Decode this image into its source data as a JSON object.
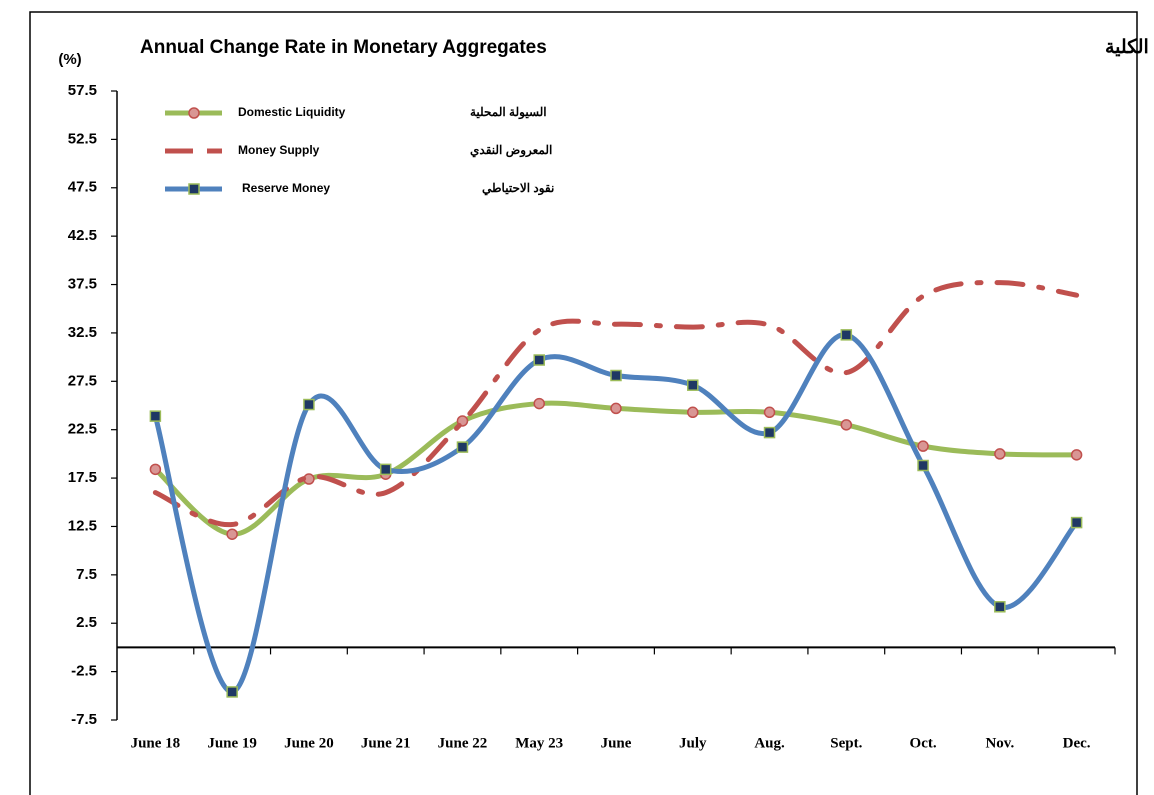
{
  "chart_data": {
    "type": "line",
    "title": "Annual Change Rate in Monetary Aggregates",
    "title_ar": "معدل التغير السنوي في المتغيرات النقدية الكلية",
    "y_label": "(%)",
    "categories": [
      "June 18",
      "June 19",
      "June 20",
      "June 21",
      "June 22",
      "May 23",
      "June",
      "July",
      "Aug.",
      "Sept.",
      "Oct.",
      "Nov.",
      "Dec."
    ],
    "ylim": [
      -7.5,
      57.5
    ],
    "yticks": [
      57.5,
      52.5,
      47.5,
      42.5,
      37.5,
      32.5,
      27.5,
      22.5,
      17.5,
      12.5,
      7.5,
      2.5,
      -2.5,
      -7.5
    ],
    "series": [
      {
        "name": "Domestic Liquidity",
        "name_ar": "السيولة المحلية",
        "color": "#9bbb59",
        "marker": "circle",
        "values": [
          18.4,
          11.7,
          17.4,
          17.9,
          23.4,
          25.2,
          24.7,
          24.3,
          24.3,
          23.0,
          20.8,
          20.0,
          19.9
        ]
      },
      {
        "name": "Money Supply",
        "name_ar": "المعروض النقدي",
        "color": "#c0504d",
        "marker": "none",
        "values": [
          16.0,
          12.7,
          17.6,
          16.0,
          23.3,
          32.8,
          33.4,
          33.1,
          33.3,
          28.4,
          36.3,
          37.7,
          36.4
        ]
      },
      {
        "name": "Reserve Money",
        "name_ar": "نقود الاحتياطي",
        "color": "#4f81bd",
        "marker": "square",
        "values": [
          23.9,
          -4.6,
          25.1,
          18.4,
          20.7,
          29.7,
          28.1,
          27.1,
          22.2,
          32.3,
          18.8,
          4.2,
          12.9
        ]
      }
    ]
  }
}
